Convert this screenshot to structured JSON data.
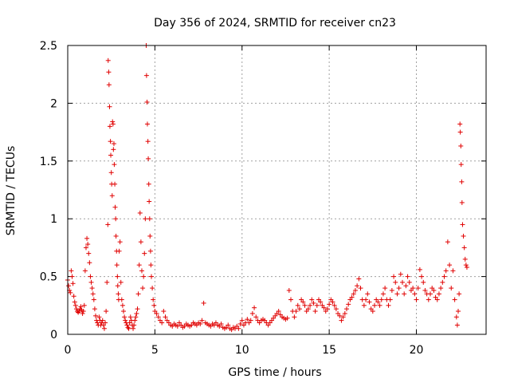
{
  "chart_data": {
    "type": "scatter",
    "title": "Day 356 of 2024, SRMTID for receiver cn23",
    "xlabel": "GPS time / hours",
    "ylabel": "SRMTID / TECUs",
    "xlim": [
      0,
      24
    ],
    "ylim": [
      0,
      2.5
    ],
    "xticks": [
      "0",
      "5",
      "10",
      "15",
      "20"
    ],
    "yticks": [
      "0",
      "0.5",
      "1",
      "1.5",
      "2",
      "2.5"
    ],
    "grid": true,
    "marker": "+",
    "marker_color": "#e00000",
    "series": [
      {
        "name": "SRMTID",
        "color": "#e00000",
        "points": [
          [
            0.0,
            0.47
          ],
          [
            0.05,
            0.42
          ],
          [
            0.1,
            0.38
          ],
          [
            0.15,
            0.36
          ],
          [
            0.2,
            0.55
          ],
          [
            0.25,
            0.5
          ],
          [
            0.3,
            0.44
          ],
          [
            0.35,
            0.33
          ],
          [
            0.4,
            0.28
          ],
          [
            0.45,
            0.25
          ],
          [
            0.5,
            0.22
          ],
          [
            0.55,
            0.2
          ],
          [
            0.6,
            0.19
          ],
          [
            0.65,
            0.2
          ],
          [
            0.7,
            0.22
          ],
          [
            0.75,
            0.24
          ],
          [
            0.8,
            0.21
          ],
          [
            0.85,
            0.18
          ],
          [
            0.9,
            0.2
          ],
          [
            0.95,
            0.25
          ],
          [
            1.0,
            0.55
          ],
          [
            1.05,
            0.75
          ],
          [
            1.1,
            0.83
          ],
          [
            1.15,
            0.78
          ],
          [
            1.2,
            0.7
          ],
          [
            1.25,
            0.62
          ],
          [
            1.3,
            0.5
          ],
          [
            1.35,
            0.45
          ],
          [
            1.4,
            0.4
          ],
          [
            1.45,
            0.35
          ],
          [
            1.5,
            0.3
          ],
          [
            1.55,
            0.22
          ],
          [
            1.6,
            0.16
          ],
          [
            1.65,
            0.12
          ],
          [
            1.7,
            0.1
          ],
          [
            1.75,
            0.08
          ],
          [
            1.8,
            0.15
          ],
          [
            1.85,
            0.12
          ],
          [
            1.9,
            0.08
          ],
          [
            1.95,
            0.1
          ],
          [
            2.0,
            0.12
          ],
          [
            2.05,
            0.08
          ],
          [
            2.1,
            0.05
          ],
          [
            2.15,
            0.1
          ],
          [
            2.2,
            0.2
          ],
          [
            2.25,
            0.45
          ],
          [
            2.3,
            0.95
          ],
          [
            2.32,
            2.37
          ],
          [
            2.35,
            2.27
          ],
          [
            2.37,
            2.16
          ],
          [
            2.4,
            1.97
          ],
          [
            2.42,
            1.8
          ],
          [
            2.45,
            1.67
          ],
          [
            2.47,
            1.55
          ],
          [
            2.5,
            1.4
          ],
          [
            2.52,
            1.3
          ],
          [
            2.55,
            1.2
          ],
          [
            2.57,
            1.84
          ],
          [
            2.6,
            1.82
          ],
          [
            2.62,
            1.6
          ],
          [
            2.65,
            1.65
          ],
          [
            2.67,
            1.47
          ],
          [
            2.7,
            1.3
          ],
          [
            2.72,
            1.1
          ],
          [
            2.75,
            1.0
          ],
          [
            2.77,
            0.85
          ],
          [
            2.8,
            0.72
          ],
          [
            2.82,
            0.6
          ],
          [
            2.85,
            0.5
          ],
          [
            2.87,
            0.42
          ],
          [
            2.9,
            0.35
          ],
          [
            2.92,
            0.3
          ],
          [
            2.95,
            0.72
          ],
          [
            3.0,
            0.8
          ],
          [
            3.05,
            0.45
          ],
          [
            3.1,
            0.3
          ],
          [
            3.15,
            0.25
          ],
          [
            3.2,
            0.2
          ],
          [
            3.25,
            0.15
          ],
          [
            3.3,
            0.12
          ],
          [
            3.35,
            0.1
          ],
          [
            3.4,
            0.08
          ],
          [
            3.45,
            0.06
          ],
          [
            3.5,
            0.05
          ],
          [
            3.55,
            0.1
          ],
          [
            3.6,
            0.15
          ],
          [
            3.65,
            0.12
          ],
          [
            3.7,
            0.08
          ],
          [
            3.75,
            0.05
          ],
          [
            3.8,
            0.08
          ],
          [
            3.85,
            0.12
          ],
          [
            3.9,
            0.15
          ],
          [
            3.95,
            0.18
          ],
          [
            4.0,
            0.22
          ],
          [
            4.05,
            0.35
          ],
          [
            4.1,
            0.6
          ],
          [
            4.15,
            1.05
          ],
          [
            4.2,
            0.8
          ],
          [
            4.25,
            0.55
          ],
          [
            4.3,
            0.4
          ],
          [
            4.35,
            0.5
          ],
          [
            4.4,
            0.7
          ],
          [
            4.45,
            1.0
          ],
          [
            4.5,
            2.5
          ],
          [
            4.52,
            2.24
          ],
          [
            4.55,
            2.01
          ],
          [
            4.57,
            1.82
          ],
          [
            4.6,
            1.67
          ],
          [
            4.62,
            1.52
          ],
          [
            4.65,
            1.3
          ],
          [
            4.67,
            1.15
          ],
          [
            4.7,
            1.0
          ],
          [
            4.72,
            0.85
          ],
          [
            4.75,
            0.72
          ],
          [
            4.77,
            0.6
          ],
          [
            4.8,
            0.5
          ],
          [
            4.85,
            0.4
          ],
          [
            4.9,
            0.3
          ],
          [
            4.95,
            0.25
          ],
          [
            5.0,
            0.2
          ],
          [
            5.1,
            0.18
          ],
          [
            5.2,
            0.15
          ],
          [
            5.3,
            0.12
          ],
          [
            5.4,
            0.1
          ],
          [
            5.5,
            0.2
          ],
          [
            5.6,
            0.15
          ],
          [
            5.7,
            0.12
          ],
          [
            5.8,
            0.1
          ],
          [
            5.9,
            0.08
          ],
          [
            6.0,
            0.07
          ],
          [
            6.1,
            0.09
          ],
          [
            6.2,
            0.08
          ],
          [
            6.3,
            0.07
          ],
          [
            6.4,
            0.1
          ],
          [
            6.5,
            0.08
          ],
          [
            6.6,
            0.06
          ],
          [
            6.7,
            0.07
          ],
          [
            6.8,
            0.09
          ],
          [
            6.9,
            0.08
          ],
          [
            7.0,
            0.07
          ],
          [
            7.1,
            0.08
          ],
          [
            7.2,
            0.1
          ],
          [
            7.3,
            0.09
          ],
          [
            7.4,
            0.08
          ],
          [
            7.5,
            0.1
          ],
          [
            7.6,
            0.09
          ],
          [
            7.7,
            0.12
          ],
          [
            7.8,
            0.27
          ],
          [
            7.9,
            0.1
          ],
          [
            8.0,
            0.09
          ],
          [
            8.1,
            0.08
          ],
          [
            8.2,
            0.07
          ],
          [
            8.3,
            0.09
          ],
          [
            8.4,
            0.08
          ],
          [
            8.5,
            0.1
          ],
          [
            8.6,
            0.08
          ],
          [
            8.7,
            0.07
          ],
          [
            8.8,
            0.09
          ],
          [
            8.9,
            0.06
          ],
          [
            9.0,
            0.05
          ],
          [
            9.1,
            0.06
          ],
          [
            9.2,
            0.08
          ],
          [
            9.3,
            0.05
          ],
          [
            9.4,
            0.04
          ],
          [
            9.5,
            0.06
          ],
          [
            9.6,
            0.05
          ],
          [
            9.7,
            0.07
          ],
          [
            9.8,
            0.05
          ],
          [
            9.9,
            0.09
          ],
          [
            10.0,
            0.12
          ],
          [
            10.1,
            0.08
          ],
          [
            10.2,
            0.1
          ],
          [
            10.3,
            0.13
          ],
          [
            10.4,
            0.1
          ],
          [
            10.5,
            0.12
          ],
          [
            10.6,
            0.18
          ],
          [
            10.7,
            0.23
          ],
          [
            10.8,
            0.15
          ],
          [
            10.9,
            0.12
          ],
          [
            11.0,
            0.1
          ],
          [
            11.1,
            0.12
          ],
          [
            11.2,
            0.13
          ],
          [
            11.3,
            0.12
          ],
          [
            11.4,
            0.1
          ],
          [
            11.5,
            0.08
          ],
          [
            11.6,
            0.1
          ],
          [
            11.7,
            0.12
          ],
          [
            11.8,
            0.14
          ],
          [
            11.9,
            0.16
          ],
          [
            12.0,
            0.18
          ],
          [
            12.1,
            0.2
          ],
          [
            12.2,
            0.17
          ],
          [
            12.3,
            0.15
          ],
          [
            12.4,
            0.14
          ],
          [
            12.5,
            0.13
          ],
          [
            12.6,
            0.14
          ],
          [
            12.7,
            0.38
          ],
          [
            12.8,
            0.3
          ],
          [
            12.9,
            0.2
          ],
          [
            13.0,
            0.15
          ],
          [
            13.1,
            0.2
          ],
          [
            13.2,
            0.25
          ],
          [
            13.3,
            0.22
          ],
          [
            13.4,
            0.3
          ],
          [
            13.5,
            0.28
          ],
          [
            13.6,
            0.25
          ],
          [
            13.7,
            0.2
          ],
          [
            13.8,
            0.22
          ],
          [
            13.9,
            0.25
          ],
          [
            14.0,
            0.3
          ],
          [
            14.1,
            0.27
          ],
          [
            14.2,
            0.2
          ],
          [
            14.3,
            0.25
          ],
          [
            14.4,
            0.3
          ],
          [
            14.5,
            0.28
          ],
          [
            14.6,
            0.25
          ],
          [
            14.7,
            0.23
          ],
          [
            14.8,
            0.2
          ],
          [
            14.9,
            0.22
          ],
          [
            15.0,
            0.26
          ],
          [
            15.1,
            0.3
          ],
          [
            15.2,
            0.28
          ],
          [
            15.3,
            0.25
          ],
          [
            15.4,
            0.22
          ],
          [
            15.5,
            0.18
          ],
          [
            15.6,
            0.16
          ],
          [
            15.7,
            0.12
          ],
          [
            15.8,
            0.15
          ],
          [
            15.9,
            0.18
          ],
          [
            16.0,
            0.22
          ],
          [
            16.1,
            0.26
          ],
          [
            16.2,
            0.3
          ],
          [
            16.3,
            0.32
          ],
          [
            16.4,
            0.35
          ],
          [
            16.5,
            0.38
          ],
          [
            16.6,
            0.42
          ],
          [
            16.7,
            0.48
          ],
          [
            16.8,
            0.4
          ],
          [
            16.9,
            0.3
          ],
          [
            17.0,
            0.25
          ],
          [
            17.1,
            0.3
          ],
          [
            17.2,
            0.35
          ],
          [
            17.3,
            0.28
          ],
          [
            17.4,
            0.22
          ],
          [
            17.5,
            0.2
          ],
          [
            17.6,
            0.25
          ],
          [
            17.7,
            0.3
          ],
          [
            17.8,
            0.28
          ],
          [
            17.9,
            0.25
          ],
          [
            18.0,
            0.3
          ],
          [
            18.1,
            0.35
          ],
          [
            18.2,
            0.4
          ],
          [
            18.3,
            0.3
          ],
          [
            18.4,
            0.25
          ],
          [
            18.5,
            0.3
          ],
          [
            18.6,
            0.38
          ],
          [
            18.7,
            0.5
          ],
          [
            18.8,
            0.45
          ],
          [
            18.9,
            0.35
          ],
          [
            19.0,
            0.4
          ],
          [
            19.1,
            0.52
          ],
          [
            19.2,
            0.45
          ],
          [
            19.3,
            0.35
          ],
          [
            19.4,
            0.42
          ],
          [
            19.5,
            0.5
          ],
          [
            19.6,
            0.45
          ],
          [
            19.7,
            0.38
          ],
          [
            19.8,
            0.4
          ],
          [
            19.9,
            0.35
          ],
          [
            20.0,
            0.3
          ],
          [
            20.1,
            0.4
          ],
          [
            20.2,
            0.56
          ],
          [
            20.3,
            0.5
          ],
          [
            20.4,
            0.45
          ],
          [
            20.5,
            0.38
          ],
          [
            20.6,
            0.35
          ],
          [
            20.7,
            0.3
          ],
          [
            20.8,
            0.35
          ],
          [
            20.9,
            0.4
          ],
          [
            21.0,
            0.38
          ],
          [
            21.1,
            0.32
          ],
          [
            21.2,
            0.3
          ],
          [
            21.3,
            0.35
          ],
          [
            21.4,
            0.4
          ],
          [
            21.5,
            0.45
          ],
          [
            21.6,
            0.5
          ],
          [
            21.7,
            0.55
          ],
          [
            21.8,
            0.8
          ],
          [
            21.9,
            0.6
          ],
          [
            22.0,
            0.4
          ],
          [
            22.1,
            0.55
          ],
          [
            22.2,
            0.3
          ],
          [
            22.3,
            0.15
          ],
          [
            22.35,
            0.08
          ],
          [
            22.4,
            0.2
          ],
          [
            22.45,
            0.35
          ],
          [
            22.5,
            1.82
          ],
          [
            22.52,
            1.75
          ],
          [
            22.55,
            1.63
          ],
          [
            22.57,
            1.47
          ],
          [
            22.6,
            1.32
          ],
          [
            22.62,
            1.14
          ],
          [
            22.65,
            0.95
          ],
          [
            22.7,
            0.85
          ],
          [
            22.75,
            0.75
          ],
          [
            22.8,
            0.65
          ],
          [
            22.85,
            0.6
          ],
          [
            22.9,
            0.58
          ]
        ]
      }
    ]
  }
}
